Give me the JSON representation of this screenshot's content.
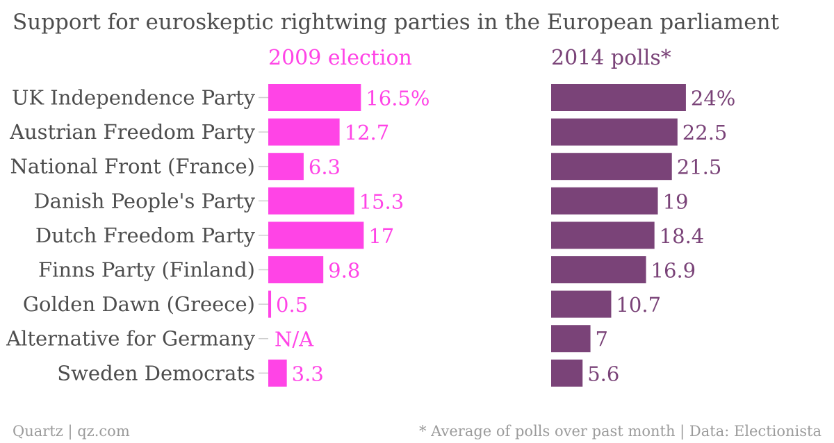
{
  "chart_data": {
    "type": "bar",
    "orientation": "horizontal",
    "title": "Support for euroskeptic rightwing parties in the European parliament",
    "categories": [
      "UK Independence Party",
      "Austrian Freedom Party",
      "National Front (France)",
      "Danish People's Party",
      "Dutch Freedom Party",
      "Finns Party (Finland)",
      "Golden Dawn (Greece)",
      "Alternative for Germany",
      "Sweden Democrats"
    ],
    "series": [
      {
        "name": "2009 election",
        "color": "#ff44e6",
        "values": [
          16.5,
          12.7,
          6.3,
          15.3,
          17,
          9.8,
          0.5,
          null,
          3.3
        ],
        "labels": [
          "16.5%",
          "12.7",
          "6.3",
          "15.3",
          "17",
          "9.8",
          "0.5",
          "N/A",
          "3.3"
        ]
      },
      {
        "name": "2014 polls*",
        "color": "#7a4378",
        "values": [
          24,
          22.5,
          21.5,
          19,
          18.4,
          16.9,
          10.7,
          7,
          5.6
        ],
        "labels": [
          "24%",
          "22.5",
          "21.5",
          "19",
          "18.4",
          "16.9",
          "10.7",
          "7",
          "5.6"
        ]
      }
    ],
    "xlim": [
      0,
      24
    ],
    "grid": false,
    "legend": "none"
  },
  "footer": {
    "source": "Quartz | qz.com",
    "note": "* Average of polls over past month | Data: Electionista"
  }
}
